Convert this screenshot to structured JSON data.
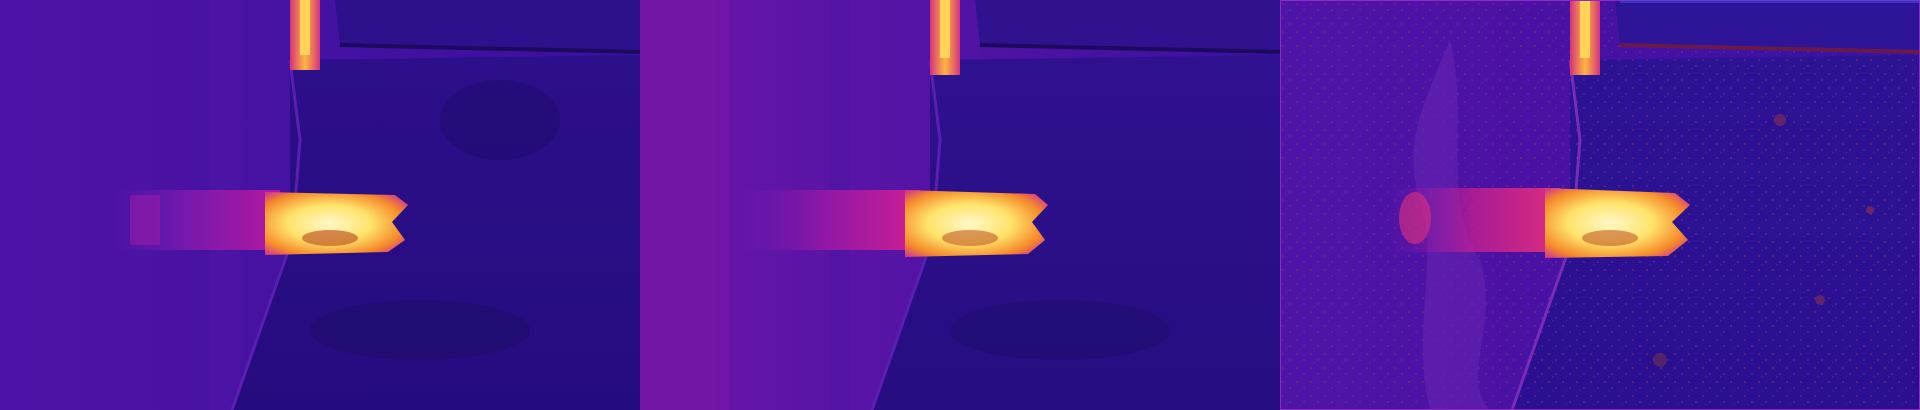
{
  "figure": {
    "panels": [
      {
        "id": "panel-1",
        "variant": "original"
      },
      {
        "id": "panel-2",
        "variant": "smoothed"
      },
      {
        "id": "panel-3",
        "variant": "noisy"
      }
    ],
    "palette": {
      "background": "#3a0f8e",
      "wall_left": "#4a13a2",
      "wall_right": "#2b0f86",
      "cool_edge": "#6a1cae",
      "warm_mid": "#c2189e",
      "hot_outer": "#f26a2a",
      "hot_core": "#ffe36a",
      "hot_center": "#fff8c9",
      "shadow": "#1d0b6a",
      "noise_speck": "#7a2b6a"
    }
  }
}
